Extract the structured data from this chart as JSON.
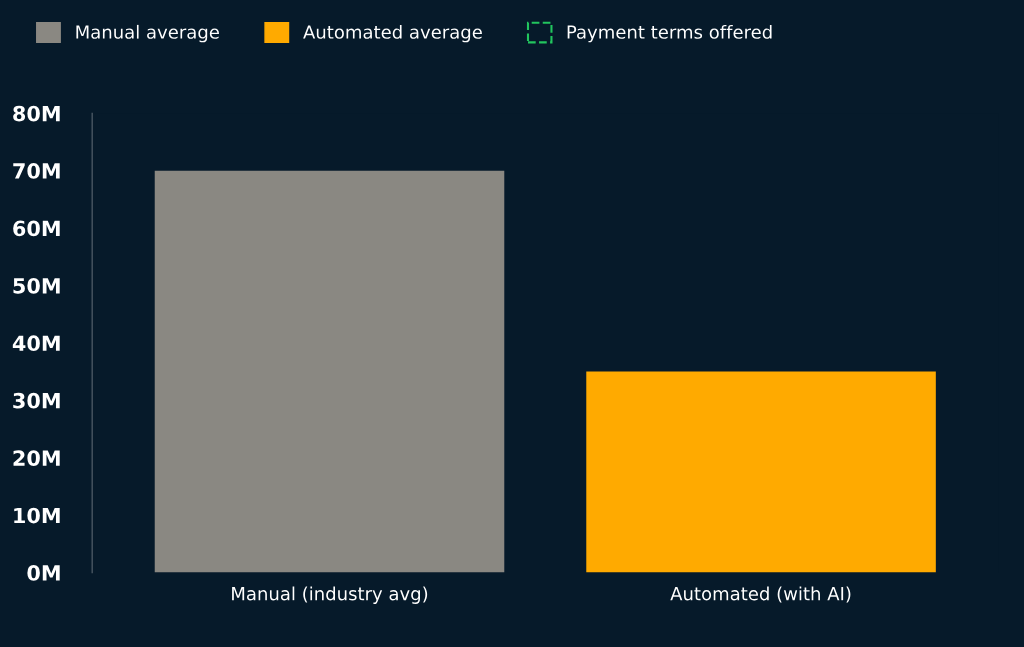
{
  "chart_data": {
    "type": "bar",
    "categories": [
      "Manual (industry avg)",
      "Automated (with AI)"
    ],
    "series": [
      {
        "name": "Manual average",
        "color": "#8a8882",
        "values": [
          70,
          null
        ]
      },
      {
        "name": "Automated average",
        "color": "#ffaa00",
        "values": [
          null,
          35
        ]
      },
      {
        "name": "Payment terms offered",
        "color": "#22c55e",
        "values": [
          null,
          null
        ],
        "line_style": "dashed"
      }
    ],
    "ylim": [
      0,
      80
    ],
    "yticks": [
      {
        "value": 0,
        "label": "0M"
      },
      {
        "value": 10,
        "label": "10M"
      },
      {
        "value": 20,
        "label": "20M"
      },
      {
        "value": 30,
        "label": "30M"
      },
      {
        "value": 40,
        "label": "40M"
      },
      {
        "value": 50,
        "label": "50M"
      },
      {
        "value": 60,
        "label": "60M"
      },
      {
        "value": 70,
        "label": "70M"
      },
      {
        "value": 80,
        "label": "80M"
      }
    ],
    "grid": false,
    "legend": "top left"
  }
}
